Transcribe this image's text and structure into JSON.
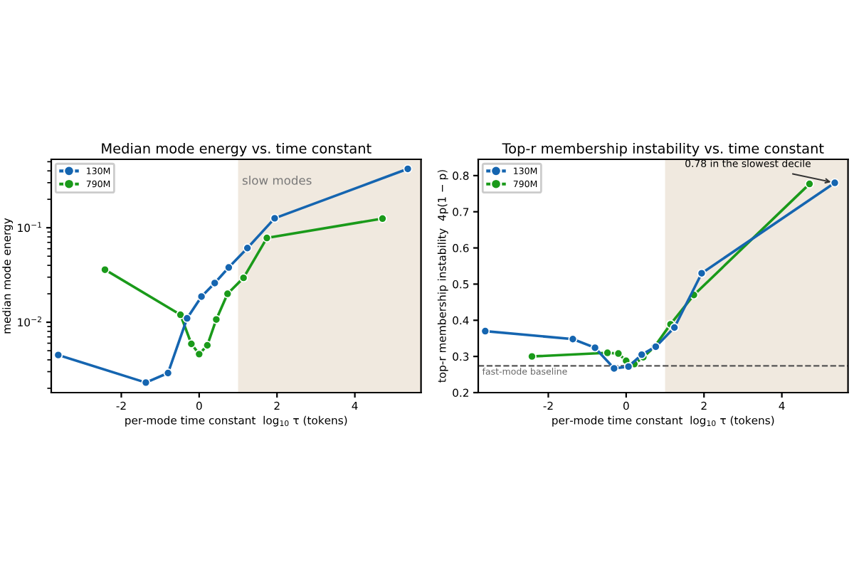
{
  "chart_data": [
    {
      "type": "line",
      "title": "Median mode energy vs. time constant",
      "xlabel": "per-mode time constant  log$_{10}$ τ (tokens)",
      "ylabel": "median mode energy",
      "series": [
        {
          "name": "130M",
          "color": "#1565b0",
          "x": [
            -3.62,
            -1.37,
            -0.8,
            -0.31,
            0.06,
            0.4,
            0.76,
            1.24,
            1.94,
            5.36
          ],
          "values": [
            0.0045,
            0.0023,
            0.0029,
            0.011,
            0.0187,
            0.026,
            0.038,
            0.061,
            0.126,
            0.42
          ]
        },
        {
          "name": "790M",
          "color": "#1a9a1a",
          "x": [
            -2.42,
            -0.48,
            -0.2,
            0.0,
            0.21,
            0.44,
            0.73,
            1.14,
            1.74,
            4.71
          ],
          "values": [
            0.036,
            0.012,
            0.0059,
            0.0046,
            0.0057,
            0.0107,
            0.02,
            0.0295,
            0.078,
            0.125
          ]
        }
      ],
      "xlim": [
        -3.8,
        5.7
      ],
      "xticks": [
        -2,
        0,
        2,
        4
      ],
      "ylim": [
        0.0018,
        0.53
      ],
      "yticks": [
        {
          "value": 0.01,
          "label": "10$^{−2}$"
        },
        {
          "value": 0.1,
          "label": "10$^{−1}$"
        }
      ],
      "log": "y",
      "bands": [
        {
          "axis": "x",
          "from": 1,
          "to": 5.7,
          "label": "slow modes",
          "color": "#f0e9df"
        }
      ],
      "legend": "top left",
      "marker": "circle",
      "line_style": "solid",
      "grid": false
    },
    {
      "type": "line",
      "title": "Top-r membership instability vs. time constant",
      "xlabel": "per-mode time constant  log$_{10}$ τ (tokens)",
      "ylabel": "top-r membership instability  4p(1 − p)",
      "series": [
        {
          "name": "130M",
          "color": "#1565b0",
          "x": [
            -3.62,
            -1.37,
            -0.8,
            -0.31,
            0.06,
            0.4,
            0.76,
            1.24,
            1.94,
            5.36
          ],
          "values": [
            0.37,
            0.348,
            0.324,
            0.267,
            0.272,
            0.305,
            0.327,
            0.38,
            0.53,
            0.78
          ]
        },
        {
          "name": "790M",
          "color": "#1a9a1a",
          "x": [
            -2.42,
            -0.48,
            -0.2,
            0.0,
            0.21,
            0.44,
            0.73,
            1.14,
            1.74,
            4.71
          ],
          "values": [
            0.3,
            0.31,
            0.308,
            0.288,
            0.279,
            0.298,
            0.327,
            0.389,
            0.47,
            0.777
          ]
        }
      ],
      "xlim": [
        -3.8,
        5.7
      ],
      "xticks": [
        -2,
        0,
        2,
        4
      ],
      "ylim": [
        0.2,
        0.845
      ],
      "yticks": [
        0.2,
        0.3,
        0.4,
        0.5,
        0.6,
        0.7,
        0.8
      ],
      "bands": [
        {
          "axis": "x",
          "from": 1,
          "to": 5.7,
          "color": "#f0e9df"
        }
      ],
      "ref_lines": [
        {
          "axis": "y",
          "value": 0.274,
          "label": "fast-mode baseline",
          "color": "#555555",
          "line_style": "dashed"
        }
      ],
      "annotations": [
        {
          "text": "0.78 in the slowest decile",
          "x": 5.36,
          "y": 0.78
        }
      ],
      "legend": "top left",
      "marker": "circle",
      "line_style": "solid",
      "grid": false
    }
  ]
}
